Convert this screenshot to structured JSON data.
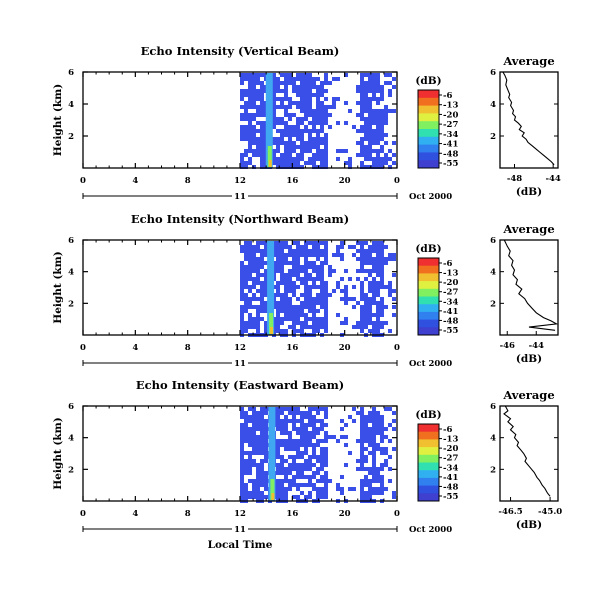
{
  "figure": {
    "colorbar_unit": "(dB)",
    "colorbar_ticks": [
      "-6",
      "-13",
      "-20",
      "-27",
      "-34",
      "-41",
      "-48",
      "-55"
    ],
    "colorbar_colors": [
      "#f03030",
      "#f07020",
      "#f0c030",
      "#e0f040",
      "#80f060",
      "#30e0b0",
      "#30b0f0",
      "#3080f0",
      "#3050e0",
      "#4040d0"
    ],
    "pixel_color": "#3a4fe8",
    "vertical_stripe_color": "#40a8f0",
    "date_label": "Oct 2000",
    "day_label": "11",
    "x_label": "Local Time",
    "height_label": "Height (km)",
    "avg_title": "Average",
    "avg_xlabel": "(dB)"
  },
  "chart_data": [
    {
      "type": "heatmap",
      "title": "Echo Intensity (Vertical Beam)",
      "ylabel": "Height (km)",
      "x_ticks": [
        "0",
        "4",
        "8",
        "12",
        "16",
        "20",
        "0"
      ],
      "y_ticks": [
        "6",
        "4",
        "2"
      ],
      "xlim": [
        0,
        24
      ],
      "ylim": [
        0,
        6
      ],
      "data_start_hour": 12,
      "data_end_hour": 24,
      "bright_column_hour": 14.2,
      "color_scale": {
        "min": -55,
        "max": -6,
        "unit": "dB"
      }
    },
    {
      "type": "line",
      "title": "Average",
      "xlabel": "(dB)",
      "x_ticks": [
        "-48",
        "-44"
      ],
      "y_ticks": [
        "6",
        "4",
        "2"
      ],
      "xlim": [
        -49.5,
        -43.5
      ],
      "ylim": [
        0,
        6
      ],
      "series": [
        {
          "x": [
            -49.2,
            -49.0,
            -48.8,
            -48.9,
            -48.7,
            -48.5,
            -48.6,
            -48.3,
            -48.4,
            -48.1,
            -48.2,
            -47.9,
            -48.0,
            -47.6,
            -47.3,
            -47.5,
            -47.0,
            -47.2,
            -46.8,
            -46.6,
            -46.2,
            -45.8,
            -45.4,
            -45.0,
            -44.6,
            -44.2,
            -43.9
          ],
          "y": [
            6.0,
            5.8,
            5.5,
            5.2,
            4.9,
            4.6,
            4.4,
            4.1,
            3.9,
            3.6,
            3.4,
            3.2,
            3.0,
            2.8,
            2.6,
            2.4,
            2.2,
            2.0,
            1.8,
            1.6,
            1.4,
            1.2,
            1.0,
            0.8,
            0.6,
            0.4,
            0.2
          ]
        }
      ]
    },
    {
      "type": "heatmap",
      "title": "Echo Intensity (Northward Beam)",
      "ylabel": "Height (km)",
      "x_ticks": [
        "0",
        "4",
        "8",
        "12",
        "16",
        "20",
        "0"
      ],
      "y_ticks": [
        "6",
        "4",
        "2"
      ],
      "xlim": [
        0,
        24
      ],
      "ylim": [
        0,
        6
      ],
      "data_start_hour": 12,
      "data_end_hour": 24,
      "bright_column_hour": 14.3,
      "color_scale": {
        "min": -55,
        "max": -6,
        "unit": "dB"
      }
    },
    {
      "type": "line",
      "title": "Average",
      "xlabel": "(dB)",
      "x_ticks": [
        "-46",
        "-44"
      ],
      "y_ticks": [
        "6",
        "4",
        "2"
      ],
      "xlim": [
        -46.5,
        -42.5
      ],
      "ylim": [
        0,
        6
      ],
      "series": [
        {
          "x": [
            -46.2,
            -46.0,
            -45.8,
            -45.9,
            -45.6,
            -45.7,
            -45.5,
            -45.6,
            -45.3,
            -45.4,
            -45.0,
            -45.2,
            -44.8,
            -44.6,
            -44.3,
            -44.0,
            -43.5,
            -43.0,
            -42.6,
            -44.5,
            -42.7
          ],
          "y": [
            6.0,
            5.6,
            5.3,
            5.0,
            4.7,
            4.4,
            4.1,
            3.8,
            3.5,
            3.2,
            2.9,
            2.6,
            2.3,
            2.0,
            1.7,
            1.4,
            1.1,
            0.9,
            0.7,
            0.5,
            0.3
          ]
        }
      ]
    },
    {
      "type": "heatmap",
      "title": "Echo Intensity (Eastward Beam)",
      "ylabel": "Height (km)",
      "x_ticks": [
        "0",
        "4",
        "8",
        "12",
        "16",
        "20",
        "0"
      ],
      "y_ticks": [
        "6",
        "4",
        "2"
      ],
      "xlim": [
        0,
        24
      ],
      "ylim": [
        0,
        6
      ],
      "data_start_hour": 12,
      "data_end_hour": 24,
      "bright_column_hour": 14.4,
      "color_scale": {
        "min": -55,
        "max": -6,
        "unit": "dB"
      }
    },
    {
      "type": "line",
      "title": "Average",
      "xlabel": "(dB)",
      "x_ticks": [
        "-46.5",
        "-45.0"
      ],
      "y_ticks": [
        "6",
        "4",
        "2"
      ],
      "xlim": [
        -46.9,
        -44.7
      ],
      "ylim": [
        0,
        6
      ],
      "series": [
        {
          "x": [
            -46.7,
            -46.6,
            -46.75,
            -46.5,
            -46.6,
            -46.4,
            -46.5,
            -46.3,
            -46.35,
            -46.2,
            -46.25,
            -46.1,
            -46.0,
            -45.9,
            -45.95,
            -45.8,
            -45.7,
            -45.6,
            -45.5,
            -45.4,
            -45.3,
            -45.2,
            -45.1,
            -45.0
          ],
          "y": [
            6.0,
            5.7,
            5.5,
            5.2,
            5.0,
            4.7,
            4.5,
            4.2,
            4.0,
            3.7,
            3.5,
            3.2,
            3.0,
            2.7,
            2.5,
            2.2,
            2.0,
            1.8,
            1.5,
            1.3,
            1.0,
            0.8,
            0.5,
            0.3
          ]
        }
      ]
    }
  ]
}
